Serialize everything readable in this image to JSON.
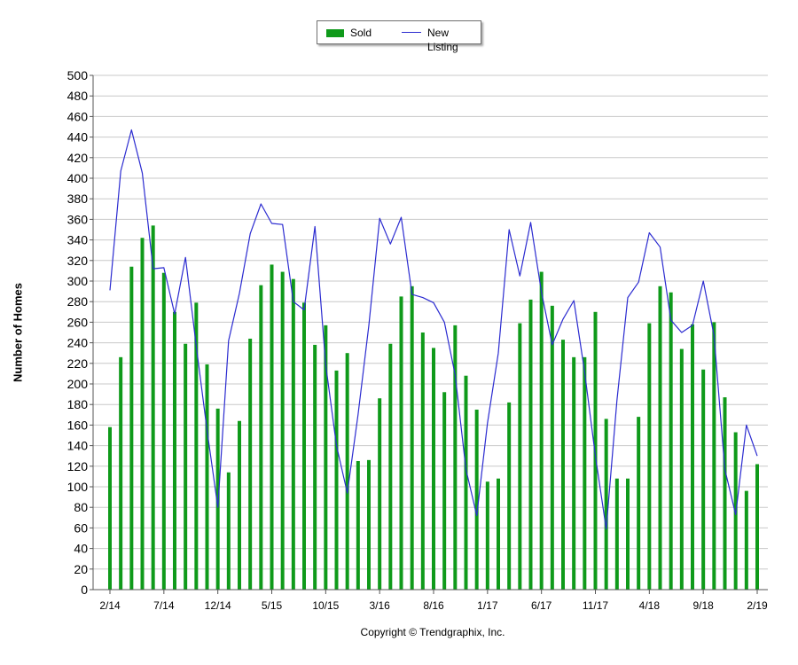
{
  "legend": {
    "sold_label": "Sold",
    "new_listing_label": "New Listing"
  },
  "copyright": "Copyright © Trendgraphix, Inc.",
  "colors": {
    "sold": "#0f9a1a",
    "new_listing": "#2b2bd0",
    "grid": "#c8c8c8",
    "axis": "#555555"
  },
  "chart_data": {
    "type": "bar",
    "title": "",
    "xlabel": "",
    "ylabel": "Number of Homes",
    "ylim": [
      0,
      500
    ],
    "y_tick_step": 20,
    "grid": true,
    "legend_position": "top-center",
    "categories": [
      "2/14",
      "3/14",
      "4/14",
      "5/14",
      "6/14",
      "7/14",
      "8/14",
      "9/14",
      "10/14",
      "11/14",
      "12/14",
      "1/15",
      "2/15",
      "3/15",
      "4/15",
      "5/15",
      "6/15",
      "7/15",
      "8/15",
      "9/15",
      "10/15",
      "11/15",
      "12/15",
      "1/16",
      "2/16",
      "3/16",
      "4/16",
      "5/16",
      "6/16",
      "7/16",
      "8/16",
      "9/16",
      "10/16",
      "11/16",
      "12/16",
      "1/17",
      "2/17",
      "3/17",
      "4/17",
      "5/17",
      "6/17",
      "7/17",
      "8/17",
      "9/17",
      "10/17",
      "11/17",
      "12/17",
      "1/18",
      "2/18",
      "3/18",
      "4/18",
      "5/18",
      "6/18",
      "7/18",
      "8/18",
      "9/18",
      "10/18",
      "11/18",
      "12/18",
      "1/19",
      "2/19"
    ],
    "x_tick_labels": [
      "2/14",
      "7/14",
      "12/14",
      "5/15",
      "10/15",
      "3/16",
      "8/16",
      "1/17",
      "6/17",
      "11/17",
      "4/18",
      "9/18",
      "2/19"
    ],
    "series": [
      {
        "name": "Sold",
        "kind": "bar",
        "values": [
          158,
          226,
          314,
          342,
          354,
          308,
          270,
          239,
          279,
          219,
          176,
          114,
          164,
          244,
          296,
          316,
          309,
          302,
          279,
          238,
          257,
          213,
          230,
          125,
          126,
          186,
          239,
          285,
          295,
          250,
          235,
          192,
          257,
          208,
          175,
          105,
          108,
          182,
          259,
          282,
          309,
          276,
          243,
          226,
          226,
          270,
          166,
          108,
          108,
          168,
          259,
          295,
          289,
          234,
          258,
          214,
          260,
          187,
          153,
          96,
          122
        ]
      },
      {
        "name": "New Listing",
        "kind": "line",
        "values": [
          291,
          407,
          447,
          405,
          312,
          313,
          268,
          323,
          237,
          155,
          80,
          242,
          288,
          346,
          375,
          356,
          355,
          280,
          272,
          353,
          219,
          140,
          94,
          170,
          257,
          361,
          336,
          362,
          287,
          284,
          279,
          260,
          209,
          117,
          72,
          162,
          230,
          350,
          305,
          357,
          289,
          238,
          263,
          281,
          212,
          130,
          59,
          184,
          284,
          299,
          347,
          333,
          262,
          250,
          257,
          300,
          247,
          117,
          73,
          160,
          130
        ]
      }
    ]
  }
}
